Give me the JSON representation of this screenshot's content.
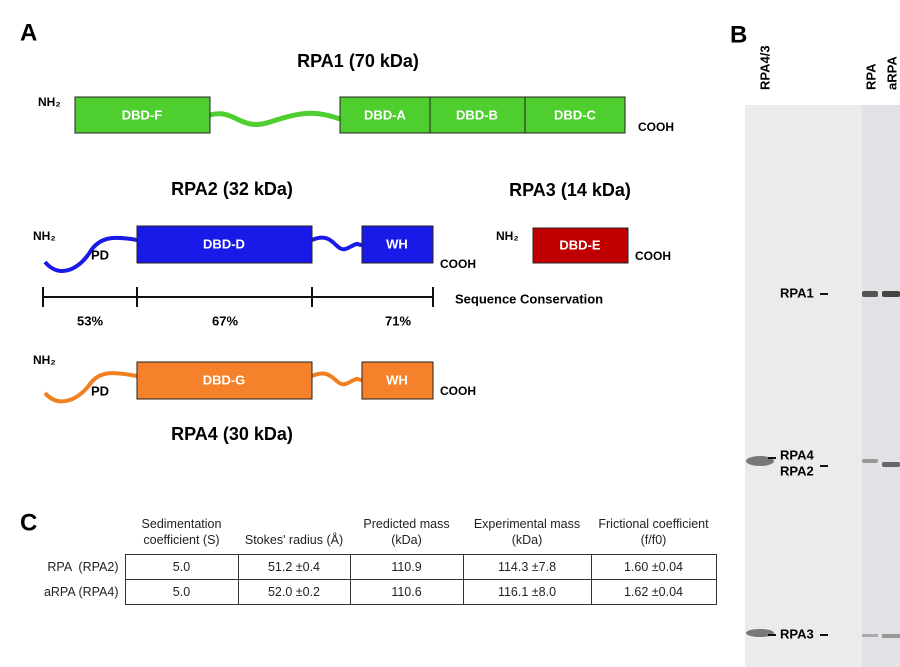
{
  "panel_a": {
    "label": "A",
    "rpa1": {
      "title": "RPA1 (70 kDa)",
      "n_terminus": "NH₂",
      "domains": [
        "DBD-F",
        "DBD-A",
        "DBD-B",
        "DBD-C"
      ],
      "c_terminus": "COOH"
    },
    "rpa2": {
      "title": "RPA2 (32 kDa)",
      "n_terminus": "NH₂",
      "pd": "PD",
      "domains": [
        "DBD-D",
        "WH"
      ],
      "c_terminus": "COOH"
    },
    "rpa3": {
      "title": "RPA3 (14 kDa)",
      "n_terminus": "NH₂",
      "domains": [
        "DBD-E"
      ],
      "c_terminus": "COOH"
    },
    "conservation": {
      "label": "Sequence Conservation",
      "values": [
        "53%",
        "67%",
        "71%"
      ]
    },
    "rpa4": {
      "title": "RPA4 (30 kDa)",
      "n_terminus": "NH₂",
      "pd": "PD",
      "domains": [
        "DBD-G",
        "WH"
      ],
      "c_terminus": "COOH"
    }
  },
  "panel_b": {
    "label": "B",
    "lanes": [
      "RPA4/3",
      "RPA",
      "aRPA"
    ],
    "bands": [
      "RPA1",
      "RPA4",
      "RPA2",
      "RPA3"
    ]
  },
  "panel_c": {
    "label": "C",
    "table": {
      "header": [
        "Sedimentation coefficient (S)",
        "Stokes' radius (Å)",
        "Predicted mass (kDa)",
        "Experimental mass (kDa)",
        "Frictional coefficient (f/f0)"
      ],
      "rows": [
        [
          "RPA  (RPA2)",
          "5.0",
          "51.2 ±0.4",
          "110.9",
          "114.3 ±7.8",
          "1.60 ±0.04"
        ],
        [
          "aRPA (RPA4)",
          "5.0",
          "52.0 ±0.2",
          "110.6",
          "116.1 ±8.0",
          "1.62 ±0.04"
        ]
      ]
    }
  }
}
